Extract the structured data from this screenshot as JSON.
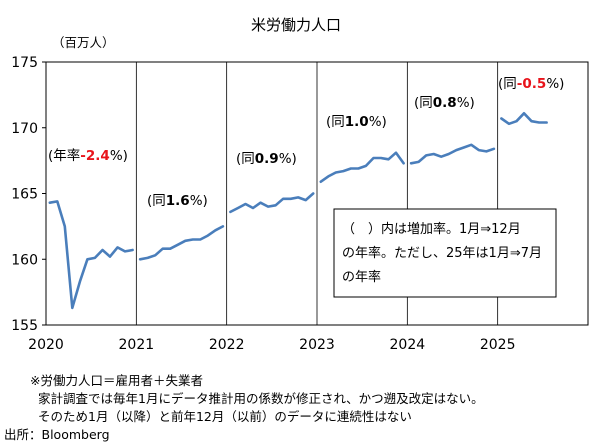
{
  "chart_data": {
    "type": "line",
    "title": "米労働力人口",
    "unit_label": "（百万人）",
    "ylim": [
      155,
      175
    ],
    "y_ticks": [
      155,
      160,
      165,
      170,
      175
    ],
    "xlim": [
      2020,
      2026
    ],
    "x_ticks": [
      "2020",
      "2021",
      "2022",
      "2023",
      "2024",
      "2025"
    ],
    "grid": "vertical gridlines at each year",
    "line_color": "#4a7ebb",
    "accent_color": "#e8141b",
    "segments": [
      {
        "year": 2020,
        "y": [
          164.3,
          164.4,
          162.5,
          156.3,
          158.3,
          160.0,
          160.1,
          160.7,
          160.2,
          160.9,
          160.6,
          160.7
        ]
      },
      {
        "year": 2021,
        "y": [
          160.0,
          160.1,
          160.3,
          160.8,
          160.8,
          161.1,
          161.4,
          161.5,
          161.5,
          161.8,
          162.2,
          162.5
        ]
      },
      {
        "year": 2022,
        "y": [
          163.6,
          163.9,
          164.2,
          163.9,
          164.3,
          164.0,
          164.1,
          164.6,
          164.6,
          164.7,
          164.5,
          165.0
        ]
      },
      {
        "year": 2023,
        "y": [
          165.9,
          166.3,
          166.6,
          166.7,
          166.9,
          166.9,
          167.1,
          167.7,
          167.7,
          167.6,
          168.1,
          167.3
        ]
      },
      {
        "year": 2024,
        "y": [
          167.3,
          167.4,
          167.9,
          168.0,
          167.8,
          168.0,
          168.3,
          168.5,
          168.7,
          168.3,
          168.2,
          168.4
        ]
      },
      {
        "year": 2025,
        "y": [
          170.7,
          170.3,
          170.5,
          171.1,
          170.5,
          170.4,
          170.4
        ]
      }
    ],
    "annotations": [
      {
        "prefix": "(年率",
        "value": "-2.4",
        "suffix": "%)",
        "value_style": "red-bold"
      },
      {
        "prefix": "(同",
        "value": "1.6",
        "suffix": "%)",
        "value_style": "bold"
      },
      {
        "prefix": "(同",
        "value": "0.9",
        "suffix": "%)",
        "value_style": "bold"
      },
      {
        "prefix": "(同",
        "value": "1.0",
        "suffix": "%)",
        "value_style": "bold"
      },
      {
        "prefix": "(同",
        "value": "0.8",
        "suffix": "%)",
        "value_style": "bold"
      },
      {
        "prefix": "(同",
        "value": "-0.5",
        "suffix": "%)",
        "value_style": "red-bold"
      }
    ],
    "note_box": [
      "（　）内は増加率。1月⇒12月",
      "の年率。ただし、25年は1月⇒7月",
      "の年率"
    ]
  },
  "footnotes": {
    "line1": "※労働力人口＝雇用者＋失業者",
    "line2": "家計調査では毎年1月にデータ推計用の係数が修正され、かつ遡及改定はない。",
    "line3": "そのため1月（以降）と前年12月（以前）のデータに連続性はない",
    "source": "出所：Bloomberg"
  }
}
